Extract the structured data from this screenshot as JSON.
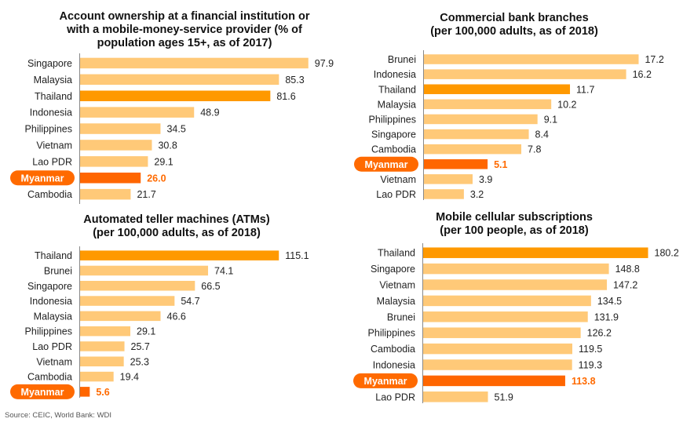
{
  "colors": {
    "bar_default": "#FFC978",
    "bar_thailand": "#FF9900",
    "bar_myanmar": "#FF6600",
    "pill": "#FF6A00",
    "axis": "#888888"
  },
  "source": "Source: CEIC, World Bank: WDI",
  "chart_data": [
    {
      "type": "bar",
      "orientation": "horizontal",
      "title_lines": [
        "Account ownership at a financial institution or",
        "with a mobile-money-service provider (% of",
        "population ages 15+, as of 2017)"
      ],
      "categories": [
        "Singapore",
        "Malaysia",
        "Thailand",
        "Indonesia",
        "Philippines",
        "Vietnam",
        "Lao PDR",
        "Myanmar",
        "Cambodia"
      ],
      "values": [
        97.9,
        85.3,
        81.6,
        48.9,
        34.5,
        30.8,
        29.1,
        26.0,
        21.7
      ],
      "labels": [
        "97.9",
        "85.3",
        "81.6",
        "48.9",
        "34.5",
        "30.8",
        "29.1",
        "26.0",
        "21.7"
      ],
      "highlight": {
        "Thailand": "bar_thailand",
        "Myanmar": "bar_myanmar"
      },
      "xlim": [
        0,
        100
      ],
      "grid": false
    },
    {
      "type": "bar",
      "orientation": "horizontal",
      "title_lines": [
        "Commercial bank branches",
        "(per 100,000 adults, as of 2018)"
      ],
      "categories": [
        "Brunei",
        "Indonesia",
        "Thailand",
        "Malaysia",
        "Philippines",
        "Singapore",
        "Cambodia",
        "Myanmar",
        "Vietnam",
        "Lao PDR"
      ],
      "values": [
        17.2,
        16.2,
        11.7,
        10.2,
        9.1,
        8.4,
        7.8,
        5.1,
        3.9,
        3.2
      ],
      "labels": [
        "17.2",
        "16.2",
        "11.7",
        "10.2",
        "9.1",
        "8.4",
        "7.8",
        "5.1",
        "3.9",
        "3.2"
      ],
      "highlight": {
        "Thailand": "bar_thailand",
        "Myanmar": "bar_myanmar"
      },
      "xlim": [
        0,
        18
      ],
      "grid": false
    },
    {
      "type": "bar",
      "orientation": "horizontal",
      "title_lines": [
        "Automated teller machines (ATMs)",
        "(per 100,000 adults, as of 2018)"
      ],
      "categories": [
        "Thailand",
        "Brunei",
        "Singapore",
        "Indonesia",
        "Malaysia",
        "Philippines",
        "Lao PDR",
        "Vietnam",
        "Cambodia",
        "Myanmar"
      ],
      "values": [
        115.1,
        74.1,
        66.5,
        54.7,
        46.6,
        29.1,
        25.7,
        25.3,
        19.4,
        5.6
      ],
      "labels": [
        "115.1",
        "74.1",
        "66.5",
        "54.7",
        "46.6",
        "29.1",
        "25.7",
        "25.3",
        "19.4",
        "5.6"
      ],
      "highlight": {
        "Thailand": "bar_thailand",
        "Myanmar": "bar_myanmar"
      },
      "xlim": [
        0,
        130
      ],
      "grid": false
    },
    {
      "type": "bar",
      "orientation": "horizontal",
      "title_lines": [
        "Mobile cellular subscriptions",
        "(per 100 people, as of 2018)"
      ],
      "categories": [
        "Thailand",
        "Singapore",
        "Vietnam",
        "Malaysia",
        "Brunei",
        "Philippines",
        "Cambodia",
        "Indonesia",
        "Myanmar",
        "Lao PDR"
      ],
      "values": [
        180.2,
        148.8,
        147.2,
        134.5,
        131.9,
        126.2,
        119.5,
        119.3,
        113.8,
        51.9
      ],
      "labels": [
        "180.2",
        "148.8",
        "147.2",
        "134.5",
        "131.9",
        "126.2",
        "119.5",
        "119.3",
        "113.8",
        "51.9"
      ],
      "highlight": {
        "Thailand": "bar_thailand",
        "Myanmar": "bar_myanmar"
      },
      "xlim": [
        0,
        190
      ],
      "grid": false
    }
  ]
}
